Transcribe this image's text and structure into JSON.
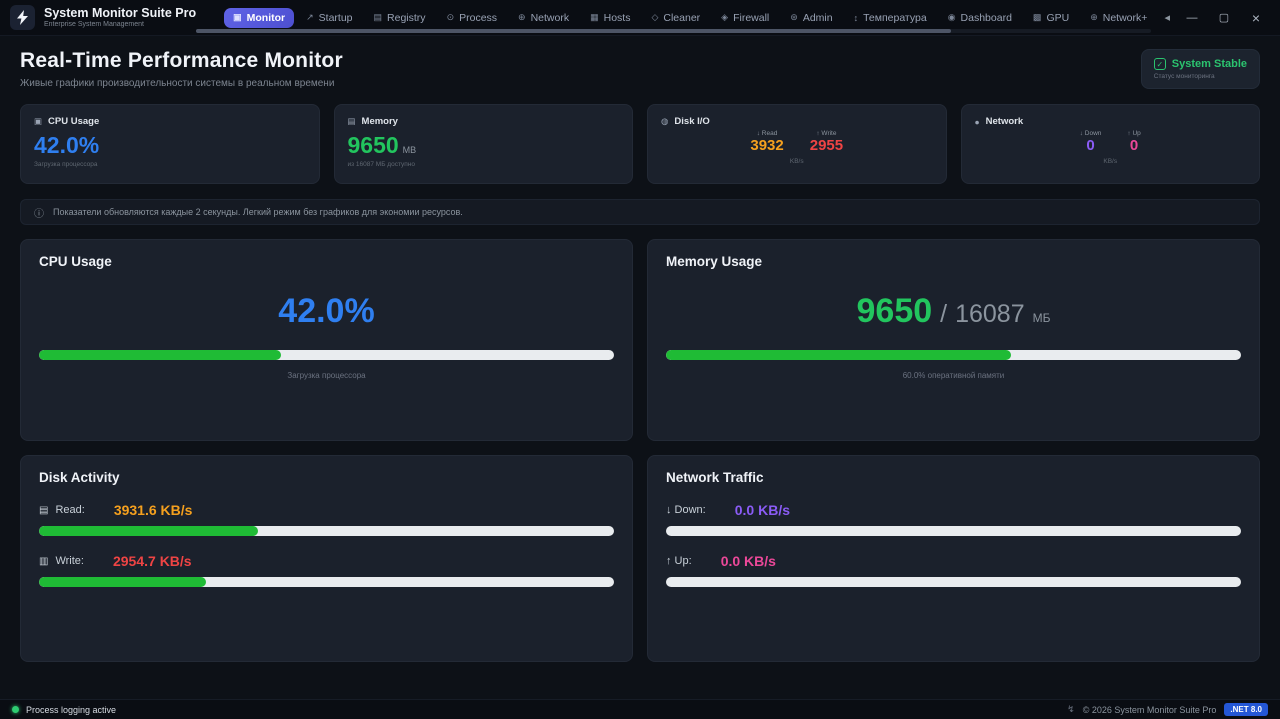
{
  "colors": {
    "accent_blue": "#2f7ff0",
    "green": "#22c55e",
    "bar_green": "#1fbb35",
    "orange": "#f5a01e",
    "red": "#ef4444",
    "purple": "#8b5cf6",
    "pink": "#ec4899",
    "stable_green": "#2bc46f"
  },
  "window": {
    "app_title": "System Monitor Suite Pro",
    "app_subtitle": "Enterprise System Management",
    "minimize": "—",
    "maximize": "▢",
    "close": "×"
  },
  "nav": {
    "overflow_arrow": "◂",
    "tabs": [
      {
        "icon": "▣",
        "label": "Monitor"
      },
      {
        "icon": "↗",
        "label": "Startup"
      },
      {
        "icon": "▤",
        "label": "Registry"
      },
      {
        "icon": "⊙",
        "label": "Process"
      },
      {
        "icon": "⊕",
        "label": "Network"
      },
      {
        "icon": "▦",
        "label": "Hosts"
      },
      {
        "icon": "◇",
        "label": "Cleaner"
      },
      {
        "icon": "◈",
        "label": "Firewall"
      },
      {
        "icon": "⊛",
        "label": "Admin"
      },
      {
        "icon": "↕",
        "label": "Температура"
      },
      {
        "icon": "◉",
        "label": "Dashboard"
      },
      {
        "icon": "▩",
        "label": "GPU"
      },
      {
        "icon": "⊕",
        "label": "Network+"
      }
    ]
  },
  "header": {
    "title": "Real-Time Performance Monitor",
    "subtitle": "Живые графики производительности системы в реальном времени",
    "status": {
      "check": "✓",
      "label": "System Stable",
      "caption": "Статус мониторинга"
    }
  },
  "stat_cards": {
    "cpu": {
      "icon": "▣",
      "title": "CPU Usage",
      "value": "42.0%",
      "caption": "Загрузка процессора"
    },
    "memory": {
      "icon": "▤",
      "title": "Memory",
      "value": "9650",
      "unit": "MB",
      "caption": "из 16087 МБ доступно"
    },
    "disk": {
      "icon": "◍",
      "title": "Disk I/O",
      "read_label": "↓ Read",
      "read_value": "3932",
      "write_label": "↑ Write",
      "write_value": "2955",
      "unit": "KB/s"
    },
    "network": {
      "icon": "●",
      "title": "Network",
      "down_label": "↓ Down",
      "down_value": "0",
      "up_label": "↑ Up",
      "up_value": "0",
      "unit": "KB/s"
    }
  },
  "banner": {
    "icon": "ⓘ",
    "text": "Показатели обновляются каждые 2 секунды. Легкий режим без графиков для экономии ресурсов."
  },
  "panels": {
    "cpu": {
      "title": "CPU Usage",
      "value": "42.0%",
      "caption": "Загрузка процессора",
      "progress": 42
    },
    "memory": {
      "title": "Memory Usage",
      "used": "9650",
      "separator": "/",
      "total": "16087",
      "unit": "МБ",
      "caption": "60.0% оперативной памяти",
      "progress": 60
    },
    "disk": {
      "title": "Disk Activity",
      "read": {
        "icon": "▤",
        "label": "Read:",
        "value": "3931.6 KB/s",
        "progress": 38
      },
      "write": {
        "icon": "▥",
        "label": "Write:",
        "value": "2954.7 KB/s",
        "progress": 29
      }
    },
    "network": {
      "title": "Network Traffic",
      "down": {
        "label": "↓ Down:",
        "value": "0.0 KB/s",
        "progress": 0
      },
      "up": {
        "label": "↑ Up:",
        "value": "0.0 KB/s",
        "progress": 0
      }
    }
  },
  "statusbar": {
    "left": "Process logging active",
    "icon": "↯",
    "copyright": "© 2026 System Monitor Suite Pro",
    "badge": ".NET 8.0"
  }
}
